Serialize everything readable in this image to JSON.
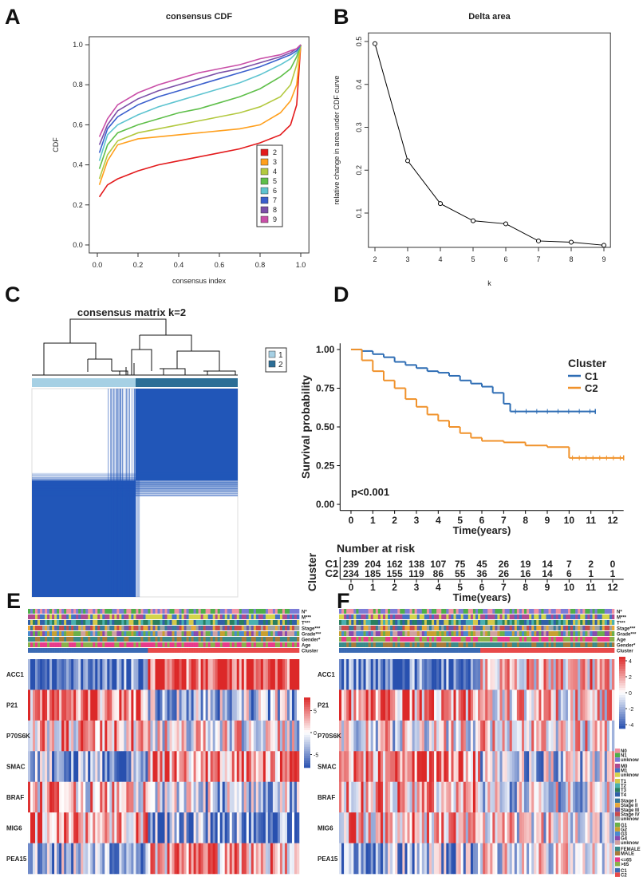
{
  "chart_data": [
    {
      "panel": "A",
      "type": "line",
      "title": "consensus CDF",
      "x_label": "consensus index",
      "y_label": "CDF",
      "x": [
        0.01,
        0.05,
        0.1,
        0.2,
        0.3,
        0.4,
        0.5,
        0.6,
        0.7,
        0.8,
        0.9,
        0.95,
        0.98,
        1.0
      ],
      "xlim": [
        -0.04,
        1.04
      ],
      "ylim": [
        -0.04,
        1.04
      ],
      "xticks": [
        {
          "value": 0,
          "label": "0.0"
        },
        0.2,
        0.4,
        0.6,
        0.8,
        {
          "value": 1,
          "label": "1.0"
        }
      ],
      "yticks": [
        {
          "value": 0,
          "label": "0.0"
        },
        0.2,
        0.4,
        0.6,
        0.8,
        {
          "value": 1,
          "label": "1.0"
        }
      ],
      "legend_position": "right",
      "series": [
        {
          "name": "2",
          "color": "#e31a1c",
          "values": [
            0.24,
            0.3,
            0.33,
            0.37,
            0.4,
            0.42,
            0.44,
            0.46,
            0.48,
            0.51,
            0.55,
            0.6,
            0.7,
            1.0
          ]
        },
        {
          "name": "3",
          "color": "#ff9f1c",
          "values": [
            0.3,
            0.42,
            0.5,
            0.53,
            0.54,
            0.55,
            0.56,
            0.57,
            0.58,
            0.6,
            0.66,
            0.72,
            0.8,
            1.0
          ]
        },
        {
          "name": "4",
          "color": "#b3c940",
          "values": [
            0.33,
            0.45,
            0.52,
            0.56,
            0.58,
            0.6,
            0.62,
            0.64,
            0.66,
            0.69,
            0.74,
            0.8,
            0.9,
            1.0
          ]
        },
        {
          "name": "5",
          "color": "#5fbf4a",
          "values": [
            0.38,
            0.5,
            0.56,
            0.6,
            0.63,
            0.66,
            0.68,
            0.71,
            0.74,
            0.78,
            0.84,
            0.88,
            0.94,
            1.0
          ]
        },
        {
          "name": "6",
          "color": "#5ec4d0",
          "values": [
            0.42,
            0.55,
            0.6,
            0.65,
            0.69,
            0.72,
            0.75,
            0.78,
            0.81,
            0.85,
            0.9,
            0.93,
            0.96,
            1.0
          ]
        },
        {
          "name": "7",
          "color": "#3a5fcd",
          "values": [
            0.46,
            0.58,
            0.64,
            0.7,
            0.74,
            0.77,
            0.8,
            0.83,
            0.86,
            0.89,
            0.93,
            0.95,
            0.97,
            1.0
          ]
        },
        {
          "name": "8",
          "color": "#7b4fa8",
          "values": [
            0.5,
            0.6,
            0.67,
            0.73,
            0.77,
            0.8,
            0.83,
            0.86,
            0.88,
            0.91,
            0.94,
            0.96,
            0.98,
            1.0
          ]
        },
        {
          "name": "9",
          "color": "#c94fa8",
          "values": [
            0.54,
            0.63,
            0.7,
            0.76,
            0.8,
            0.83,
            0.86,
            0.88,
            0.9,
            0.93,
            0.95,
            0.97,
            0.98,
            1.0
          ]
        }
      ]
    },
    {
      "panel": "B",
      "type": "line",
      "title": "Delta area",
      "x_label": "k",
      "y_label": "relative change in area under CDF curve",
      "x": [
        2,
        3,
        4,
        5,
        6,
        7,
        8,
        9
      ],
      "values": [
        0.495,
        0.222,
        0.122,
        0.082,
        0.075,
        0.035,
        0.032,
        0.025
      ],
      "color": "#000000",
      "xlim": [
        1.8,
        9.2
      ],
      "ylim": [
        0.02,
        0.52
      ],
      "xticks": [
        2,
        3,
        4,
        5,
        6,
        7,
        8,
        9
      ],
      "yticks": [
        0.1,
        0.2,
        0.3,
        0.4,
        0.5
      ]
    },
    {
      "panel": "C",
      "type": "consensus_matrix",
      "title": "consensus matrix k=2",
      "matrix_color": "#2156b8",
      "series": [
        {
          "name": "1",
          "color": "#a6d0e4"
        },
        {
          "name": "2",
          "color": "#2c6e96"
        }
      ]
    },
    {
      "panel": "D",
      "type": "survival",
      "y_label": "Survival probability",
      "x_label": "Time(years)",
      "legend_title": "Cluster",
      "annotation": "p<0.001",
      "xlim": [
        -0.5,
        12.5
      ],
      "ylim": [
        -0.04,
        1.04
      ],
      "xticks": [
        0,
        1,
        2,
        3,
        4,
        5,
        6,
        7,
        8,
        9,
        10,
        11,
        12
      ],
      "yticks": [
        {
          "value": 0,
          "label": "0.00"
        },
        0.25,
        {
          "value": 0.5,
          "label": "0.50"
        },
        0.75,
        {
          "value": 1,
          "label": "1.00"
        }
      ],
      "series": [
        {
          "name": "C1",
          "color": "#2e6db4",
          "x": [
            0,
            0.5,
            1,
            1.5,
            2,
            2.5,
            3,
            3.5,
            4,
            4.5,
            5,
            5.5,
            6,
            6.5,
            7,
            7.3,
            11.2
          ],
          "values": [
            1,
            0.99,
            0.97,
            0.95,
            0.92,
            0.9,
            0.88,
            0.86,
            0.85,
            0.83,
            0.8,
            0.78,
            0.76,
            0.72,
            0.65,
            0.6,
            0.6
          ]
        },
        {
          "name": "C2",
          "color": "#f0922b",
          "x": [
            0,
            0.5,
            1,
            1.5,
            2,
            2.5,
            3,
            3.5,
            4,
            4.5,
            5,
            5.5,
            6,
            7,
            8,
            9,
            10,
            12.5
          ],
          "values": [
            1,
            0.93,
            0.86,
            0.8,
            0.75,
            0.68,
            0.63,
            0.58,
            0.54,
            0.5,
            0.46,
            0.43,
            0.41,
            0.4,
            0.38,
            0.37,
            0.3,
            0.3
          ]
        }
      ],
      "risk_table": {
        "title": "Number at risk",
        "y_label": "Cluster",
        "x_label": "Time(years)",
        "xticks": [
          0,
          1,
          2,
          3,
          4,
          5,
          6,
          7,
          8,
          9,
          10,
          11,
          12
        ],
        "rows": [
          {
            "name": "C1",
            "values": [
              239,
              204,
              162,
              138,
              107,
              75,
              45,
              26,
              19,
              14,
              7,
              2,
              0
            ]
          },
          {
            "name": "C2",
            "values": [
              234,
              185,
              155,
              119,
              86,
              55,
              36,
              26,
              16,
              14,
              6,
              1,
              1
            ]
          }
        ]
      }
    },
    {
      "panel": "E",
      "type": "heatmap",
      "rows": [
        "ACC1",
        "P21",
        "P70S6K",
        "SMAC",
        "BRAF",
        "MIG6",
        "PEA15"
      ],
      "annotations": [
        "N*",
        "M***",
        "T***",
        "Stage***",
        "Grade***",
        "Gender*",
        "Age",
        "Cluster"
      ],
      "colorbar_lim": [
        -8,
        8
      ],
      "colorbar_ticks": [
        5,
        0,
        -5
      ]
    },
    {
      "panel": "F",
      "type": "heatmap",
      "rows": [
        "ACC1",
        "P21",
        "P70S6K",
        "SMAC",
        "BRAF",
        "MIG6",
        "PEA15"
      ],
      "annotations": [
        "N*",
        "M***",
        "T***",
        "Stage***",
        "Grade***",
        "Age",
        "Gender*",
        "Cluster"
      ],
      "colorbar_lim": [
        -4.5,
        4.5
      ],
      "colorbar_ticks": [
        4,
        2,
        0,
        -2,
        -4
      ],
      "legend_groups": [
        [
          {
            "name": "N0",
            "color": "#f08fa0"
          },
          {
            "name": "N1",
            "color": "#4daf4a"
          },
          {
            "name": "unknow",
            "color": "#7b7bd6"
          }
        ],
        [
          {
            "name": "M0",
            "color": "#b04a8f"
          },
          {
            "name": "M1",
            "color": "#4472c4"
          },
          {
            "name": "unknow",
            "color": "#d4d44a"
          }
        ],
        [
          {
            "name": "T1",
            "color": "#d4c84a"
          },
          {
            "name": "T2",
            "color": "#4ab0b0"
          },
          {
            "name": "T3",
            "color": "#2a7f5f"
          },
          {
            "name": "T4",
            "color": "#3060a8"
          }
        ],
        [
          {
            "name": "Stage I",
            "color": "#3a7a9a"
          },
          {
            "name": "Stage II",
            "color": "#e8a838"
          },
          {
            "name": "Stage III",
            "color": "#6a5aa8"
          },
          {
            "name": "Stage IV",
            "color": "#c84a4a"
          },
          {
            "name": "unknow",
            "color": "#a0a0a0"
          }
        ],
        [
          {
            "name": "G1",
            "color": "#6ab04a"
          },
          {
            "name": "G2",
            "color": "#c8a030"
          },
          {
            "name": "G3",
            "color": "#4a8ad0"
          },
          {
            "name": "G4",
            "color": "#8a4ab0"
          },
          {
            "name": "unknow",
            "color": "#d0a0a0"
          }
        ],
        [
          {
            "name": "FEMALE",
            "color": "#3a8a8a"
          },
          {
            "name": "MALE",
            "color": "#a87a3a"
          }
        ],
        [
          {
            "name": "<=65",
            "color": "#e83a8a"
          },
          {
            "name": ">65",
            "color": "#8ab04a"
          }
        ],
        [
          {
            "name": "C1",
            "color": "#3a6ab4"
          },
          {
            "name": "C2",
            "color": "#e84a4a"
          }
        ]
      ]
    }
  ]
}
